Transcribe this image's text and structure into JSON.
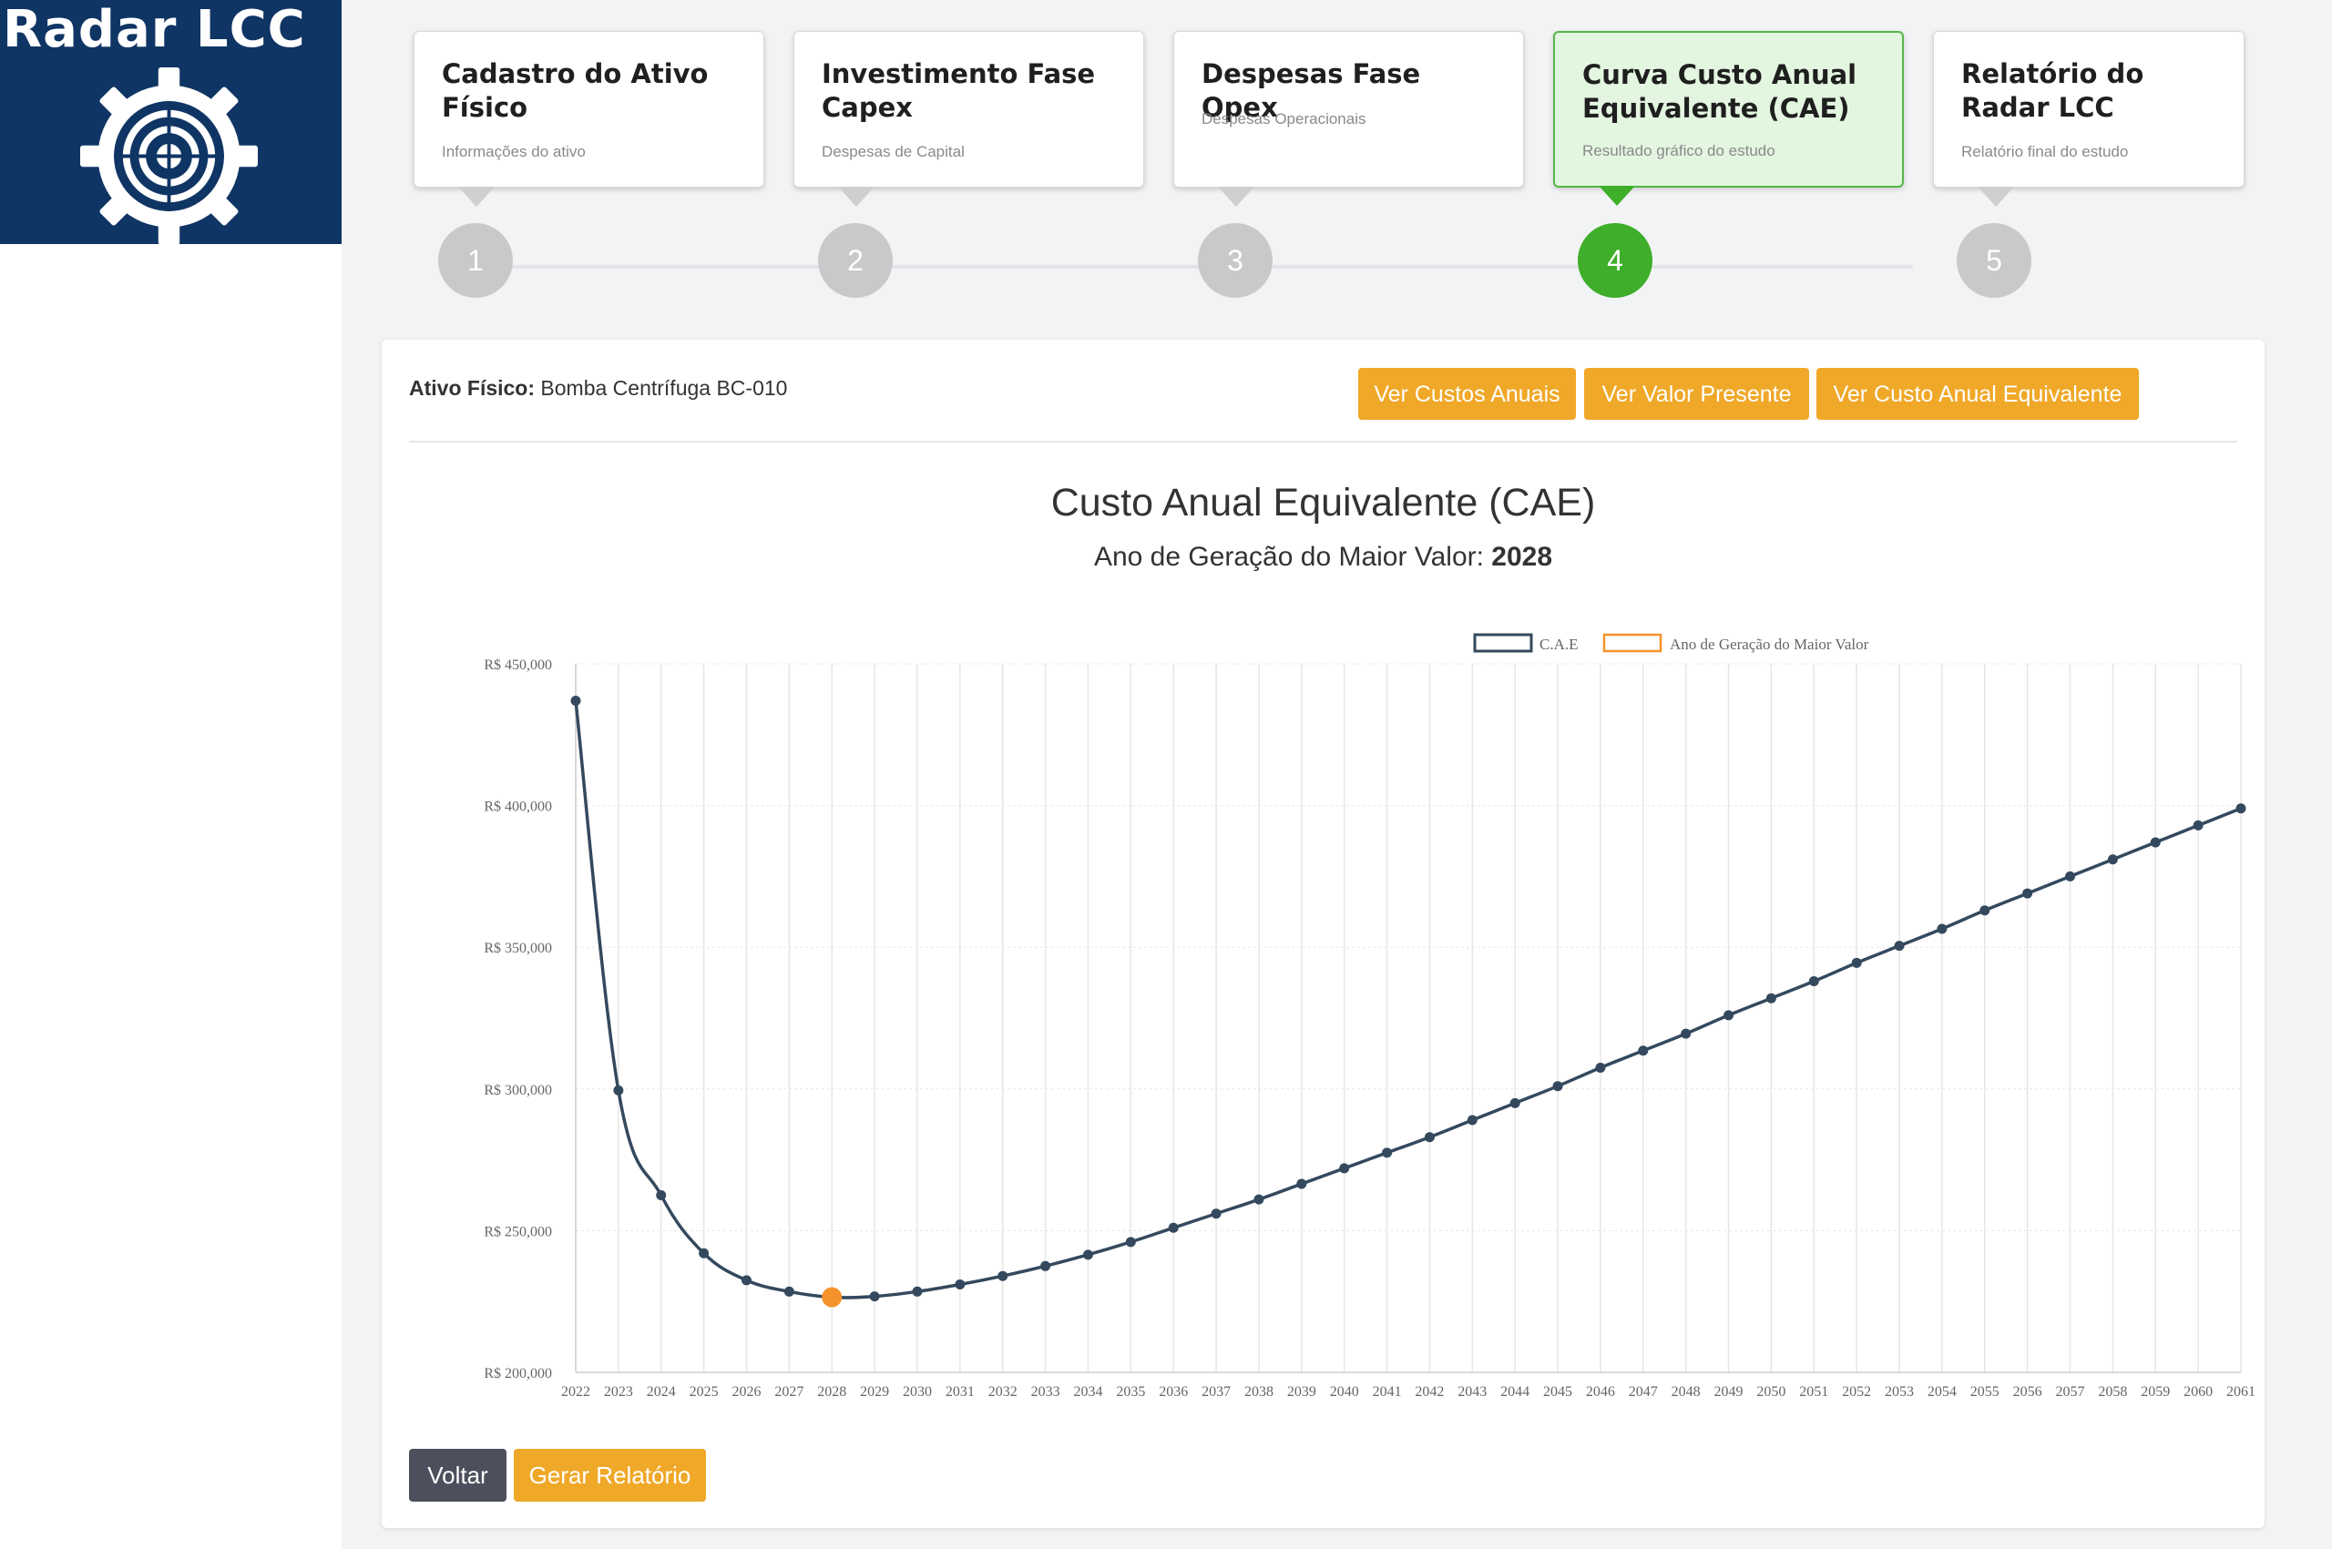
{
  "logo": {
    "text": "Radar LCC"
  },
  "steps": [
    {
      "number": "1",
      "title": "Cadastro do Ativo Físico",
      "subtitle": "Informações do ativo",
      "active": false
    },
    {
      "number": "2",
      "title": "Investimento Fase Capex",
      "subtitle": "Despesas de Capital",
      "active": false
    },
    {
      "number": "3",
      "title": "Despesas Fase Opex",
      "subtitle": "Despesas Operacionais",
      "active": false
    },
    {
      "number": "4",
      "title": "Curva Custo Anual Equivalente (CAE)",
      "subtitle": "Resultado gráfico do estudo",
      "active": true
    },
    {
      "number": "5",
      "title": "Relatório do Radar LCC",
      "subtitle": "Relatório final do estudo",
      "active": false
    }
  ],
  "asset": {
    "label": "Ativo Físico:",
    "value": "Bomba Centrífuga BC-010"
  },
  "view_buttons": {
    "annual_costs": "Ver Custos Anuais",
    "present_value": "Ver Valor Presente",
    "equivalent_annual_cost": "Ver Custo Anual Equivalente"
  },
  "chart_title": "Custo Anual Equivalente (CAE)",
  "chart_subtitle": {
    "label": "Ano de Geração do Maior Valor:",
    "value": "2028"
  },
  "chart_data": {
    "type": "line",
    "legend": [
      "C.A.E",
      "Ano de Geração do Maior Valor"
    ],
    "legend_position": "top-center",
    "ylim": [
      200000,
      450000
    ],
    "y_ticks": [
      "R$ 200,000",
      "R$ 250,000",
      "R$ 300,000",
      "R$ 350,000",
      "R$ 400,000",
      "R$ 450,000"
    ],
    "x": [
      2022,
      2023,
      2024,
      2025,
      2026,
      2027,
      2028,
      2029,
      2030,
      2031,
      2032,
      2033,
      2034,
      2035,
      2036,
      2037,
      2038,
      2039,
      2040,
      2041,
      2042,
      2043,
      2044,
      2045,
      2046,
      2047,
      2048,
      2049,
      2050,
      2051,
      2052,
      2053,
      2054,
      2055,
      2056,
      2057,
      2058,
      2059,
      2060,
      2061
    ],
    "series": [
      {
        "name": "C.A.E",
        "color": "#34495e",
        "values": [
          437000,
          299500,
          262500,
          242000,
          232500,
          228500,
          226500,
          226800,
          228500,
          231000,
          234000,
          237500,
          241500,
          246000,
          251000,
          256000,
          261000,
          266500,
          272000,
          277500,
          283000,
          289000,
          295000,
          301000,
          307500,
          313500,
          319500,
          326000,
          332000,
          338000,
          344500,
          350500,
          356500,
          363000,
          369000,
          375000,
          381000,
          387000,
          393000,
          399000
        ]
      },
      {
        "name": "Ano de Geração do Maior Valor",
        "color": "#f5922b",
        "points": [
          {
            "x": 2028,
            "y": 226500
          }
        ]
      }
    ],
    "grid": true
  },
  "bottom_buttons": {
    "back": "Voltar",
    "report": "Gerar Relatório"
  },
  "colors": {
    "logo_bg": "#0f3564",
    "accent_orange": "#f0a828",
    "active_green": "#3fae2a",
    "line": "#34495e",
    "back_btn": "#4d4f5c"
  }
}
